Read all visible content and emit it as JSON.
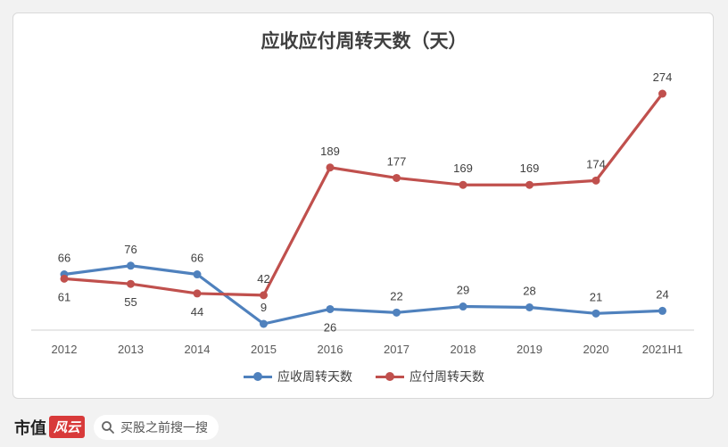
{
  "chart_data": {
    "type": "line",
    "title": "应收应付周转天数（天）",
    "categories": [
      "2012",
      "2013",
      "2014",
      "2015",
      "2016",
      "2017",
      "2018",
      "2019",
      "2020",
      "2021H1"
    ],
    "series": [
      {
        "name": "应收周转天数",
        "values": [
          66,
          76,
          66,
          9,
          26,
          22,
          29,
          28,
          21,
          24
        ],
        "color": "#4f81bd"
      },
      {
        "name": "应付周转天数",
        "values": [
          61,
          55,
          44,
          42,
          189,
          177,
          169,
          169,
          174,
          274
        ],
        "color": "#c0504d"
      }
    ],
    "grid": false,
    "legend": "bottom"
  },
  "footer": {
    "brand_text": "市值",
    "brand_mark": "风云",
    "search_icon": "search-icon",
    "search_text": "买股之前搜一搜"
  }
}
